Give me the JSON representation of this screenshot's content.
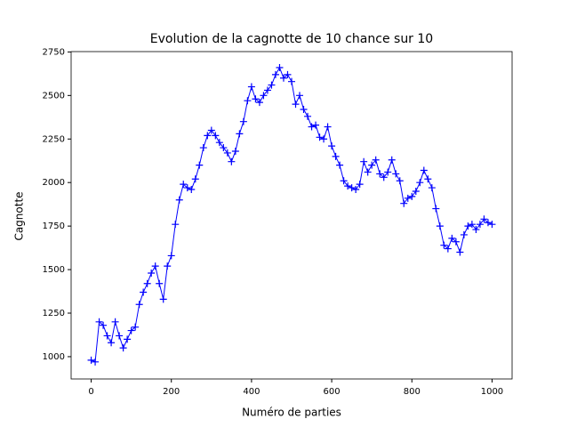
{
  "chart_data": {
    "type": "line",
    "title": "Evolution de la cagnotte de 10 chance sur 10",
    "xlabel": "Numéro de parties",
    "ylabel": "Cagnotte",
    "x": [
      0,
      10,
      20,
      30,
      40,
      50,
      60,
      70,
      80,
      90,
      100,
      110,
      120,
      130,
      140,
      150,
      160,
      170,
      180,
      190,
      200,
      210,
      220,
      230,
      240,
      250,
      260,
      270,
      280,
      290,
      300,
      310,
      320,
      330,
      340,
      350,
      360,
      370,
      380,
      390,
      400,
      410,
      420,
      430,
      440,
      450,
      460,
      470,
      480,
      490,
      500,
      510,
      520,
      530,
      540,
      550,
      560,
      570,
      580,
      590,
      600,
      610,
      620,
      630,
      640,
      650,
      660,
      670,
      680,
      690,
      700,
      710,
      720,
      730,
      740,
      750,
      760,
      770,
      780,
      790,
      800,
      810,
      820,
      830,
      840,
      850,
      860,
      870,
      880,
      890,
      900,
      910,
      920,
      930,
      940,
      950,
      960,
      970,
      980,
      990,
      1000
    ],
    "series": [
      {
        "color": "#0000ff",
        "marker": "+",
        "values": [
          980,
          970,
          1200,
          1180,
          1120,
          1080,
          1200,
          1120,
          1050,
          1100,
          1150,
          1170,
          1300,
          1370,
          1420,
          1480,
          1520,
          1420,
          1330,
          1520,
          1580,
          1760,
          1900,
          1990,
          1970,
          1960,
          2020,
          2100,
          2200,
          2270,
          2300,
          2270,
          2230,
          2200,
          2170,
          2120,
          2180,
          2280,
          2350,
          2470,
          2550,
          2480,
          2460,
          2500,
          2530,
          2560,
          2620,
          2660,
          2600,
          2620,
          2580,
          2450,
          2500,
          2420,
          2380,
          2320,
          2330,
          2260,
          2250,
          2320,
          2210,
          2150,
          2100,
          2010,
          1980,
          1970,
          1960,
          1990,
          2120,
          2060,
          2100,
          2130,
          2050,
          2030,
          2060,
          2130,
          2050,
          2010,
          1880,
          1910,
          1920,
          1950,
          2000,
          2070,
          2020,
          1970,
          1850,
          1750,
          1640,
          1620,
          1680,
          1660,
          1600,
          1700,
          1750,
          1760,
          1730,
          1760,
          1790,
          1770,
          1760
        ]
      }
    ],
    "xlim": [
      -50,
      1050
    ],
    "ylim": [
      872,
      2752
    ],
    "xticks": [
      0,
      200,
      400,
      600,
      800,
      1000
    ],
    "yticks": [
      1000,
      1250,
      1500,
      1750,
      2000,
      2250,
      2500,
      2750
    ]
  }
}
